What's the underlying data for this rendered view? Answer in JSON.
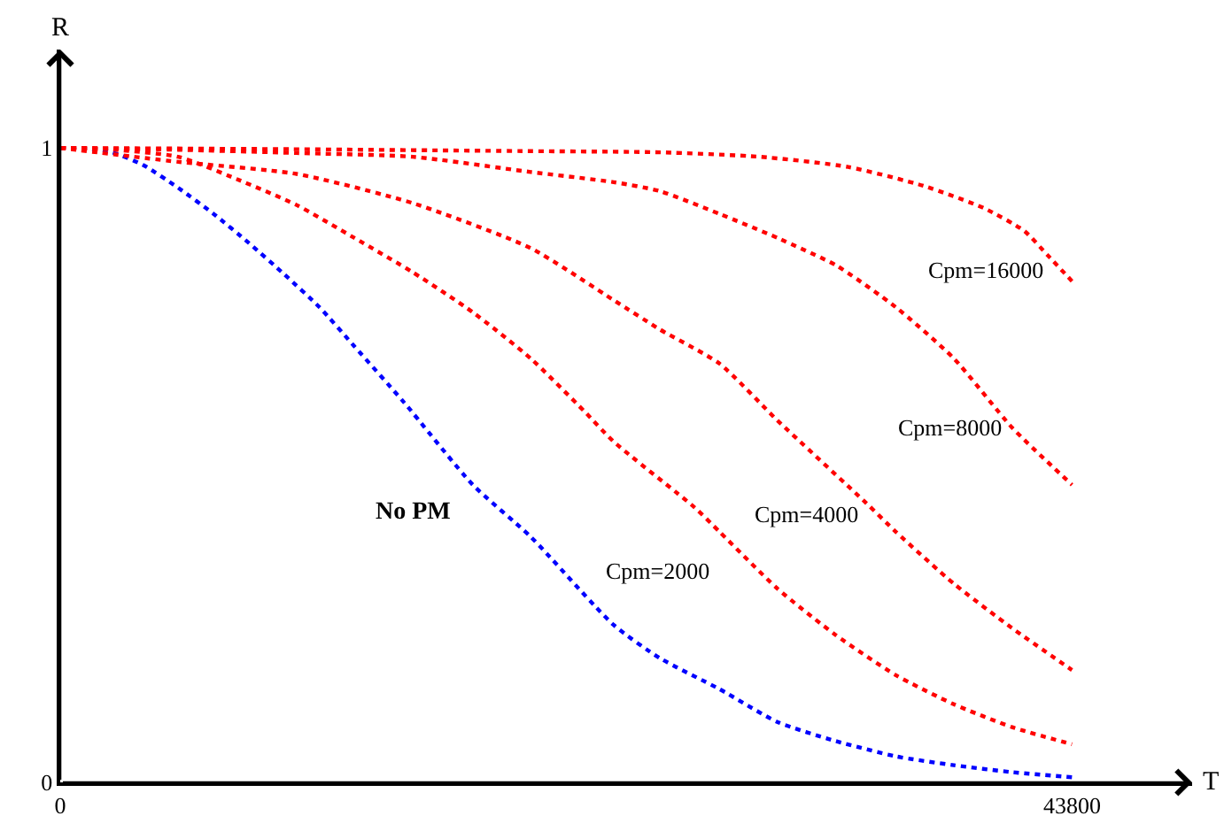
{
  "chart_data": {
    "type": "line",
    "xlabel": "T",
    "ylabel": "R",
    "xlim": [
      0,
      49000
    ],
    "ylim": [
      0,
      1.155
    ],
    "xticks": [
      0,
      43800
    ],
    "yticks": [
      0,
      1
    ],
    "line_style": "dotted",
    "marker": "none",
    "legend": false,
    "series": [
      {
        "name": "No PM",
        "color": "#0000ff",
        "x": [
          0,
          2060,
          3590,
          5110,
          6640,
          8170,
          9690,
          11220,
          12740,
          14880,
          17860,
          20370,
          23960,
          25950,
          28540,
          31060,
          33580,
          36170,
          38690,
          41210,
          43800
        ],
        "values": [
          1,
          0.995,
          0.973,
          0.937,
          0.896,
          0.85,
          0.801,
          0.749,
          0.687,
          0.599,
          0.469,
          0.387,
          0.248,
          0.196,
          0.147,
          0.095,
          0.065,
          0.041,
          0.027,
          0.016,
          0.008
        ]
      },
      {
        "name": "Cpm=2000",
        "color": "#ff0000",
        "x": [
          0,
          2000,
          5110,
          7630,
          10230,
          12740,
          15260,
          17860,
          20370,
          22660,
          23960,
          27470,
          28540,
          31060,
          33580,
          36170,
          38690,
          41210,
          43800
        ],
        "values": [
          1,
          0.998,
          0.986,
          0.951,
          0.91,
          0.858,
          0.804,
          0.741,
          0.668,
          0.586,
          0.537,
          0.433,
          0.395,
          0.305,
          0.232,
          0.169,
          0.123,
          0.087,
          0.06
        ]
      },
      {
        "name": "Cpm=4000",
        "color": "#ff0000",
        "x": [
          0,
          5110,
          10230,
          15260,
          20370,
          23960,
          25950,
          28540,
          31060,
          34870,
          36170,
          38690,
          41210,
          43800
        ],
        "values": [
          1,
          0.978,
          0.959,
          0.913,
          0.842,
          0.76,
          0.714,
          0.66,
          0.57,
          0.441,
          0.395,
          0.313,
          0.243,
          0.177
        ]
      },
      {
        "name": "Cpm=8000",
        "color": "#ff0000",
        "x": [
          0,
          5110,
          10230,
          15260,
          20370,
          23960,
          25950,
          28540,
          31060,
          33580,
          36170,
          38690,
          41210,
          43800
        ],
        "values": [
          1,
          0.997,
          0.992,
          0.986,
          0.962,
          0.946,
          0.932,
          0.896,
          0.858,
          0.815,
          0.749,
          0.668,
          0.559,
          0.469
        ]
      },
      {
        "name": "Cpm=16000",
        "color": "#ff0000",
        "x": [
          0,
          10000,
          20000,
          26000,
          30300,
          34110,
          37390,
          39990,
          41740,
          42740,
          43800
        ],
        "values": [
          1,
          0.998,
          0.995,
          0.993,
          0.986,
          0.97,
          0.94,
          0.905,
          0.869,
          0.831,
          0.79
        ]
      }
    ]
  }
}
